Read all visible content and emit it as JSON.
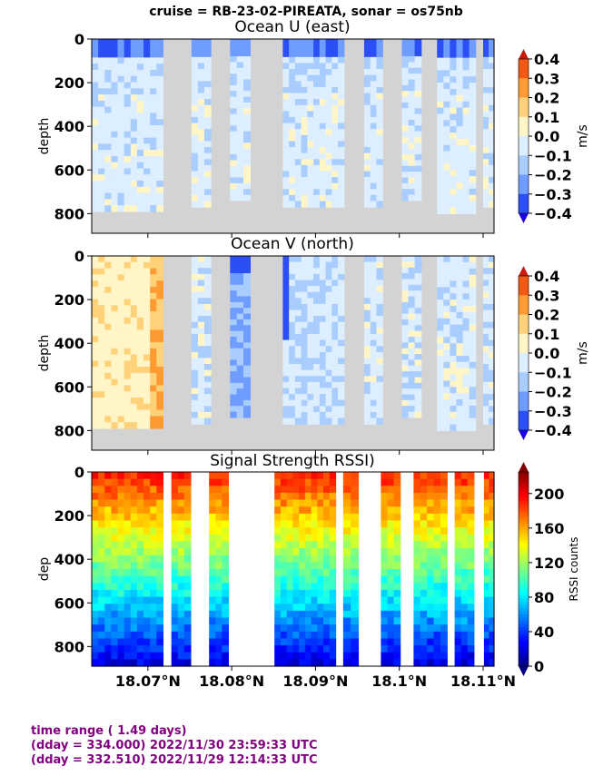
{
  "suptitle": "cruise = RB-23-02-PIREATA,  sonar = os75nb",
  "xaxis": {
    "ticks": [
      18.07,
      18.08,
      18.09,
      18.1,
      18.11
    ],
    "tick_labels": [
      "18.07°N",
      "18.08°N",
      "18.09°N",
      "18.1°N",
      "18.11°N"
    ],
    "range": [
      18.0633,
      18.1113
    ]
  },
  "footer": {
    "line1": "time range ( 1.49 days)",
    "line2": "(dday = 334.000) 2022/11/30 23:59:33 UTC",
    "line3": "(dday = 332.510) 2022/11/29 12:14:33 UTC"
  },
  "colors": {
    "no_data": "#d3d3d3",
    "velocity_levels": [
      "#1c00e0",
      "#2b4ff5",
      "#6f9cff",
      "#a9cdff",
      "#ddeeff",
      "#fff5c6",
      "#ffd27a",
      "#ff9b33",
      "#f05a12",
      "#c81a0a"
    ]
  },
  "chart_data": [
    {
      "type": "heatmap",
      "title": "Ocean U (east)",
      "ylabel": "depth",
      "ylim": [
        890,
        0
      ],
      "yticks": [
        0,
        200,
        400,
        600,
        800
      ],
      "colorbar_label": "m/s",
      "colorbar_ticks": [
        "0.4",
        "0.3",
        "0.2",
        "0.1",
        "0.0",
        "−0.1",
        "−0.2",
        "−0.3",
        "−0.4"
      ],
      "levels": [
        -0.4,
        0.4
      ],
      "data_segments_lat": [
        [
          18.0633,
          18.0718
        ],
        [
          18.0752,
          18.0775
        ],
        [
          18.0798,
          18.0822
        ],
        [
          18.0861,
          18.0934
        ],
        [
          18.0958,
          18.098
        ],
        [
          18.1003,
          18.1026
        ],
        [
          18.1045,
          18.1091
        ],
        [
          18.11,
          18.1113
        ]
      ],
      "value_field": "Ocean U (east) velocity, mostly -0.1 to 0.0 m/s with -0.2 to -0.4 m/s near surface"
    },
    {
      "type": "heatmap",
      "title": "Ocean V (north)",
      "ylabel": "depth",
      "ylim": [
        890,
        0
      ],
      "yticks": [
        0,
        200,
        400,
        600,
        800
      ],
      "colorbar_label": "m/s",
      "colorbar_ticks": [
        "0.4",
        "0.3",
        "0.2",
        "0.1",
        "0.0",
        "−0.1",
        "−0.2",
        "−0.3",
        "−0.4"
      ],
      "levels": [
        -0.4,
        0.4
      ],
      "data_segments_lat": [
        [
          18.0633,
          18.0718
        ],
        [
          18.0752,
          18.0775
        ],
        [
          18.0798,
          18.0822
        ],
        [
          18.0861,
          18.0934
        ],
        [
          18.0958,
          18.098
        ],
        [
          18.1003,
          18.1026
        ],
        [
          18.1045,
          18.1091
        ],
        [
          18.11,
          18.1113
        ]
      ],
      "value_field": "Ocean V (north) velocity, 0.0 to 0.3 m/s in west, -0.1 to -0.4 m/s elsewhere"
    },
    {
      "type": "heatmap",
      "title": "Signal Strength RSSI)",
      "ylabel": "dep",
      "ylim": [
        890,
        0
      ],
      "yticks": [
        0,
        200,
        400,
        600,
        800
      ],
      "colorbar_label": "RSSI counts",
      "colorbar_ticks": [
        "200",
        "160",
        "120",
        "80",
        "40",
        "0"
      ],
      "levels": [
        0,
        225
      ],
      "data_segments_lat": [
        [
          18.0633,
          18.0718
        ],
        [
          18.0728,
          18.0751
        ],
        [
          18.0773,
          18.0796
        ],
        [
          18.0851,
          18.0924
        ],
        [
          18.0933,
          18.0951
        ],
        [
          18.0978,
          18.1001
        ],
        [
          18.1017,
          18.1057
        ],
        [
          18.1066,
          18.1089
        ],
        [
          18.1101,
          18.1113
        ]
      ],
      "value_field": "RSSI decreasing with depth from about 200 counts near surface to about 20 counts at 890 m"
    }
  ]
}
